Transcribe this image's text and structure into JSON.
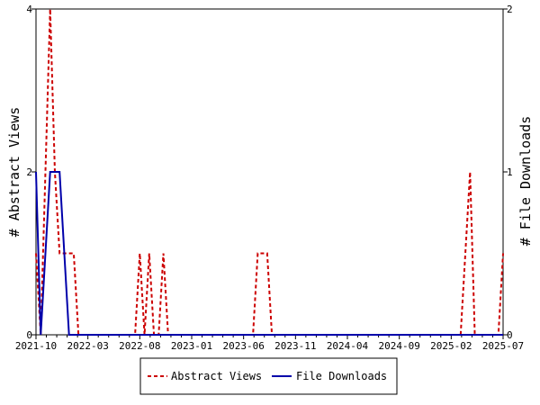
{
  "chart_data": {
    "type": "line",
    "title": "",
    "ylabel_left": "# Abstract Views",
    "ylabel_right": "# File Downloads",
    "y_left_range": [
      0,
      4
    ],
    "y_left_ticks": [
      "0",
      "2",
      "4"
    ],
    "y_right_range": [
      0,
      2
    ],
    "y_right_ticks": [
      "0",
      "1",
      "2"
    ],
    "x_ticks": [
      "2021-10",
      "2022-03",
      "2022-08",
      "2023-01",
      "2023-06",
      "2023-11",
      "2024-04",
      "2024-09",
      "2025-02",
      "2025-07"
    ],
    "legend": {
      "placement": "bottom-center"
    },
    "grid": false,
    "series": [
      {
        "name": "Abstract Views",
        "axis": "left",
        "color": "#cc0000",
        "style": "dashed",
        "values": [
          1,
          0,
          2,
          4,
          2,
          1,
          1,
          1,
          1,
          0,
          0,
          0,
          0,
          0,
          0,
          0,
          0,
          0,
          0,
          0,
          0,
          0,
          1,
          0,
          1,
          0,
          0,
          1,
          0,
          0,
          0,
          0,
          0,
          0,
          0,
          0,
          0,
          0,
          0,
          0,
          0,
          0,
          0,
          0,
          0,
          0,
          0,
          1,
          1,
          1,
          0,
          0,
          0,
          0,
          0,
          0,
          0,
          0,
          0,
          0,
          0,
          0,
          0,
          0,
          0,
          0,
          0,
          0,
          0,
          0,
          0,
          0,
          0,
          0,
          0,
          0,
          0,
          0,
          0,
          0,
          0,
          0,
          0,
          0,
          0,
          0,
          0,
          0,
          0,
          0,
          0,
          1,
          2,
          0,
          0,
          0,
          0,
          0,
          0,
          1
        ]
      },
      {
        "name": "File Downloads",
        "axis": "right",
        "color": "#0000aa",
        "style": "solid",
        "values": [
          1,
          0,
          0.5,
          1,
          1,
          1,
          0.5,
          0,
          0,
          0,
          0,
          0,
          0,
          0,
          0,
          0,
          0,
          0,
          0,
          0,
          0,
          0,
          0,
          0,
          0,
          0,
          0,
          0,
          0,
          0,
          0,
          0,
          0,
          0,
          0,
          0,
          0,
          0,
          0,
          0,
          0,
          0,
          0,
          0,
          0,
          0,
          0,
          0,
          0,
          0,
          0,
          0,
          0,
          0,
          0,
          0,
          0,
          0,
          0,
          0,
          0,
          0,
          0,
          0,
          0,
          0,
          0,
          0,
          0,
          0,
          0,
          0,
          0,
          0,
          0,
          0,
          0,
          0,
          0,
          0,
          0,
          0,
          0,
          0,
          0,
          0,
          0,
          0,
          0,
          0,
          0,
          0,
          0,
          0,
          0,
          0,
          0,
          0,
          0,
          0
        ]
      }
    ]
  }
}
